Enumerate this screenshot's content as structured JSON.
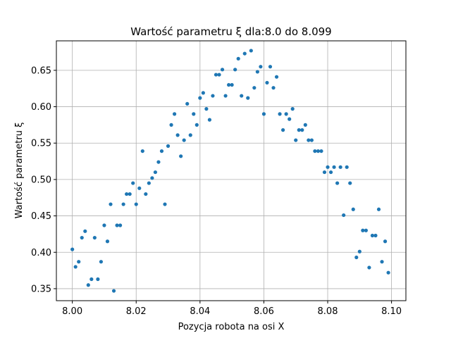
{
  "chart_data": {
    "type": "scatter",
    "title": "Wartość parametru ξ dla:8.0 do 8.099",
    "xlabel": "Pozycja robota na osi X",
    "ylabel": "Wartość parametru ξ",
    "xlim": [
      7.995,
      8.1045
    ],
    "ylim": [
      0.3335,
      0.6905
    ],
    "xticks": [
      "8.00",
      "8.02",
      "8.04",
      "8.06",
      "8.08",
      "8.10"
    ],
    "yticks": [
      "0.35",
      "0.40",
      "0.45",
      "0.50",
      "0.55",
      "0.60",
      "0.65"
    ],
    "grid": true,
    "marker_color": "#1f77b4",
    "points": [
      [
        8.0,
        0.404
      ],
      [
        8.001,
        0.38
      ],
      [
        8.002,
        0.387
      ],
      [
        8.003,
        0.42
      ],
      [
        8.004,
        0.429
      ],
      [
        8.005,
        0.355
      ],
      [
        8.006,
        0.363
      ],
      [
        8.007,
        0.42
      ],
      [
        8.008,
        0.363
      ],
      [
        8.009,
        0.387
      ],
      [
        8.01,
        0.437
      ],
      [
        8.011,
        0.415
      ],
      [
        8.012,
        0.466
      ],
      [
        8.013,
        0.347
      ],
      [
        8.014,
        0.437
      ],
      [
        8.015,
        0.437
      ],
      [
        8.016,
        0.466
      ],
      [
        8.017,
        0.48
      ],
      [
        8.018,
        0.48
      ],
      [
        8.019,
        0.495
      ],
      [
        8.02,
        0.466
      ],
      [
        8.021,
        0.488
      ],
      [
        8.022,
        0.539
      ],
      [
        8.023,
        0.48
      ],
      [
        8.024,
        0.495
      ],
      [
        8.025,
        0.502
      ],
      [
        8.026,
        0.51
      ],
      [
        8.027,
        0.524
      ],
      [
        8.028,
        0.539
      ],
      [
        8.029,
        0.466
      ],
      [
        8.03,
        0.546
      ],
      [
        8.031,
        0.575
      ],
      [
        8.032,
        0.59
      ],
      [
        8.033,
        0.561
      ],
      [
        8.034,
        0.532
      ],
      [
        8.035,
        0.554
      ],
      [
        8.036,
        0.604
      ],
      [
        8.037,
        0.561
      ],
      [
        8.038,
        0.59
      ],
      [
        8.039,
        0.575
      ],
      [
        8.04,
        0.612
      ],
      [
        8.041,
        0.619
      ],
      [
        8.042,
        0.597
      ],
      [
        8.043,
        0.582
      ],
      [
        8.044,
        0.615
      ],
      [
        8.045,
        0.644
      ],
      [
        8.046,
        0.644
      ],
      [
        8.047,
        0.651
      ],
      [
        8.048,
        0.615
      ],
      [
        8.049,
        0.63
      ],
      [
        8.05,
        0.63
      ],
      [
        8.051,
        0.651
      ],
      [
        8.052,
        0.666
      ],
      [
        8.053,
        0.615
      ],
      [
        8.054,
        0.673
      ],
      [
        8.055,
        0.612
      ],
      [
        8.056,
        0.677
      ],
      [
        8.057,
        0.626
      ],
      [
        8.058,
        0.648
      ],
      [
        8.059,
        0.655
      ],
      [
        8.06,
        0.59
      ],
      [
        8.061,
        0.633
      ],
      [
        8.062,
        0.655
      ],
      [
        8.063,
        0.626
      ],
      [
        8.064,
        0.641
      ],
      [
        8.065,
        0.59
      ],
      [
        8.066,
        0.568
      ],
      [
        8.067,
        0.59
      ],
      [
        8.068,
        0.583
      ],
      [
        8.069,
        0.597
      ],
      [
        8.07,
        0.554
      ],
      [
        8.071,
        0.568
      ],
      [
        8.072,
        0.568
      ],
      [
        8.073,
        0.575
      ],
      [
        8.074,
        0.554
      ],
      [
        8.075,
        0.554
      ],
      [
        8.076,
        0.539
      ],
      [
        8.077,
        0.539
      ],
      [
        8.078,
        0.539
      ],
      [
        8.079,
        0.51
      ],
      [
        8.08,
        0.517
      ],
      [
        8.081,
        0.51
      ],
      [
        8.082,
        0.517
      ],
      [
        8.083,
        0.495
      ],
      [
        8.084,
        0.517
      ],
      [
        8.085,
        0.451
      ],
      [
        8.086,
        0.517
      ],
      [
        8.087,
        0.495
      ],
      [
        8.088,
        0.459
      ],
      [
        8.089,
        0.393
      ],
      [
        8.09,
        0.401
      ],
      [
        8.091,
        0.43
      ],
      [
        8.092,
        0.43
      ],
      [
        8.093,
        0.379
      ],
      [
        8.094,
        0.423
      ],
      [
        8.095,
        0.423
      ],
      [
        8.096,
        0.459
      ],
      [
        8.097,
        0.387
      ],
      [
        8.098,
        0.415
      ],
      [
        8.099,
        0.372
      ]
    ]
  }
}
